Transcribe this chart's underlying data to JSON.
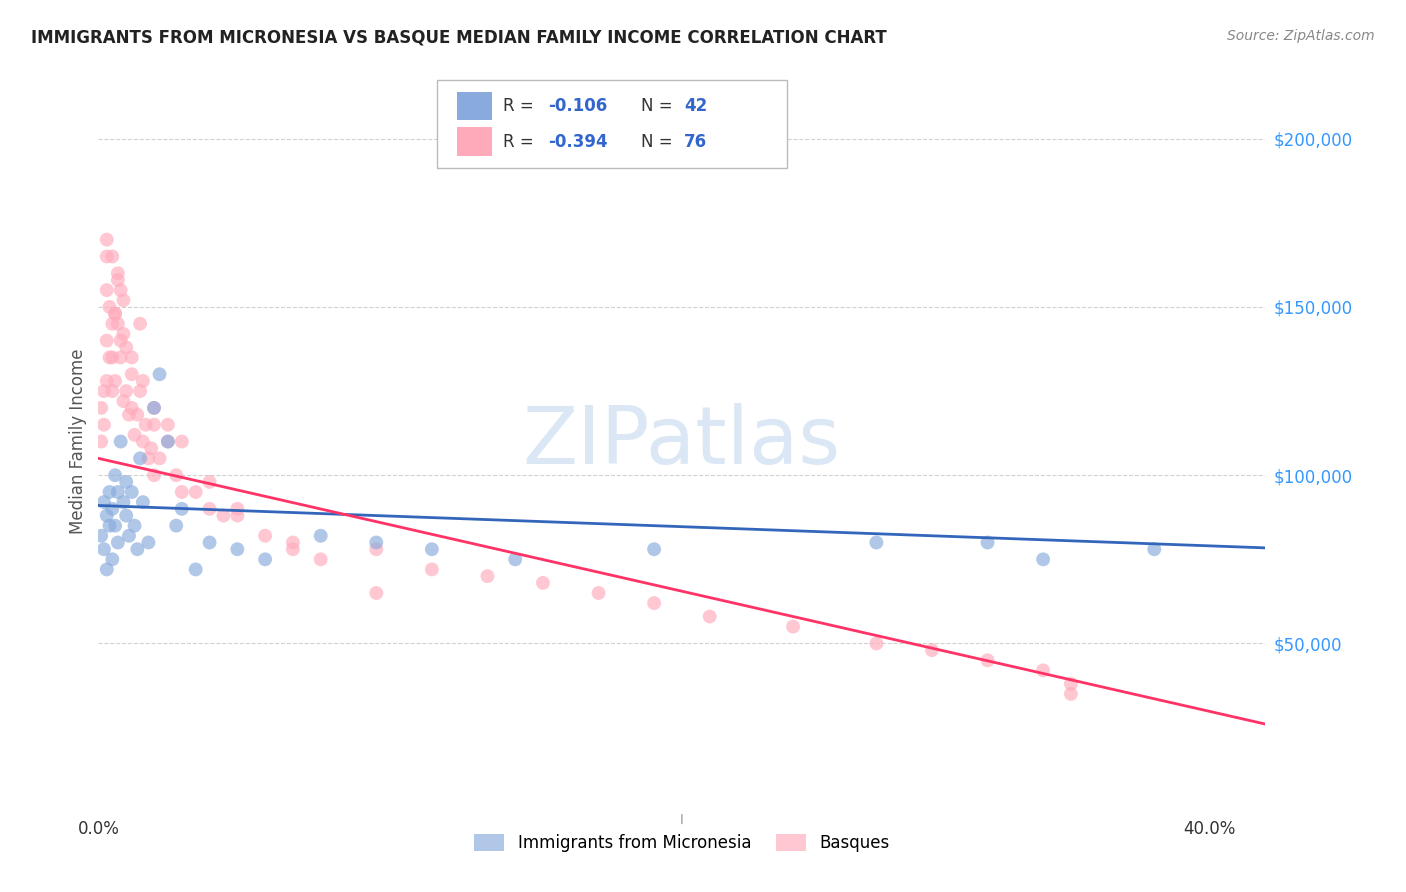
{
  "title": "IMMIGRANTS FROM MICRONESIA VS BASQUE MEDIAN FAMILY INCOME CORRELATION CHART",
  "source": "Source: ZipAtlas.com",
  "ylabel": "Median Family Income",
  "background_color": "#ffffff",
  "grid_color": "#cccccc",
  "blue_color": "#88aadd",
  "pink_color": "#ffaabb",
  "blue_line_color": "#3366bb",
  "pink_line_color": "#ff3366",
  "watermark_color": "#b8d0ea",
  "micronesia_x": [
    0.001,
    0.002,
    0.002,
    0.003,
    0.003,
    0.004,
    0.004,
    0.005,
    0.005,
    0.006,
    0.006,
    0.007,
    0.007,
    0.008,
    0.009,
    0.01,
    0.01,
    0.011,
    0.012,
    0.013,
    0.014,
    0.015,
    0.016,
    0.018,
    0.02,
    0.022,
    0.025,
    0.028,
    0.03,
    0.035,
    0.04,
    0.05,
    0.06,
    0.08,
    0.1,
    0.12,
    0.15,
    0.2,
    0.28,
    0.32,
    0.34,
    0.38
  ],
  "micronesia_y": [
    82000,
    92000,
    78000,
    88000,
    72000,
    95000,
    85000,
    90000,
    75000,
    100000,
    85000,
    95000,
    80000,
    110000,
    92000,
    98000,
    88000,
    82000,
    95000,
    85000,
    78000,
    105000,
    92000,
    80000,
    120000,
    130000,
    110000,
    85000,
    90000,
    72000,
    80000,
    78000,
    75000,
    82000,
    80000,
    78000,
    75000,
    78000,
    80000,
    80000,
    75000,
    78000
  ],
  "basque_x": [
    0.001,
    0.001,
    0.002,
    0.002,
    0.003,
    0.003,
    0.003,
    0.004,
    0.004,
    0.005,
    0.005,
    0.005,
    0.006,
    0.006,
    0.007,
    0.007,
    0.008,
    0.008,
    0.009,
    0.009,
    0.01,
    0.01,
    0.011,
    0.012,
    0.012,
    0.013,
    0.014,
    0.015,
    0.016,
    0.017,
    0.018,
    0.019,
    0.02,
    0.02,
    0.022,
    0.025,
    0.028,
    0.03,
    0.035,
    0.04,
    0.045,
    0.05,
    0.06,
    0.07,
    0.08,
    0.1,
    0.12,
    0.14,
    0.16,
    0.18,
    0.2,
    0.22,
    0.003,
    0.006,
    0.008,
    0.012,
    0.016,
    0.02,
    0.025,
    0.03,
    0.04,
    0.05,
    0.07,
    0.1,
    0.003,
    0.005,
    0.007,
    0.009,
    0.015,
    0.25,
    0.28,
    0.3,
    0.32,
    0.34,
    0.35,
    0.35
  ],
  "basque_y": [
    120000,
    110000,
    125000,
    115000,
    155000,
    140000,
    128000,
    150000,
    135000,
    145000,
    135000,
    125000,
    148000,
    128000,
    160000,
    145000,
    155000,
    135000,
    142000,
    122000,
    138000,
    125000,
    118000,
    130000,
    120000,
    112000,
    118000,
    125000,
    110000,
    115000,
    105000,
    108000,
    115000,
    100000,
    105000,
    110000,
    100000,
    95000,
    95000,
    90000,
    88000,
    90000,
    82000,
    78000,
    75000,
    78000,
    72000,
    70000,
    68000,
    65000,
    62000,
    58000,
    165000,
    148000,
    140000,
    135000,
    128000,
    120000,
    115000,
    110000,
    98000,
    88000,
    80000,
    65000,
    170000,
    165000,
    158000,
    152000,
    145000,
    55000,
    50000,
    48000,
    45000,
    42000,
    38000,
    35000
  ],
  "ylim": [
    0,
    220000
  ],
  "xlim": [
    0.0,
    0.42
  ],
  "ytick_vals": [
    0,
    50000,
    100000,
    150000,
    200000
  ],
  "ytick_labels": [
    "",
    "$50,000",
    "$100,000",
    "$150,000",
    "$200,000"
  ],
  "title_fontsize": 12,
  "marker_size": 100,
  "marker_alpha": 0.65,
  "line_width": 2.0
}
